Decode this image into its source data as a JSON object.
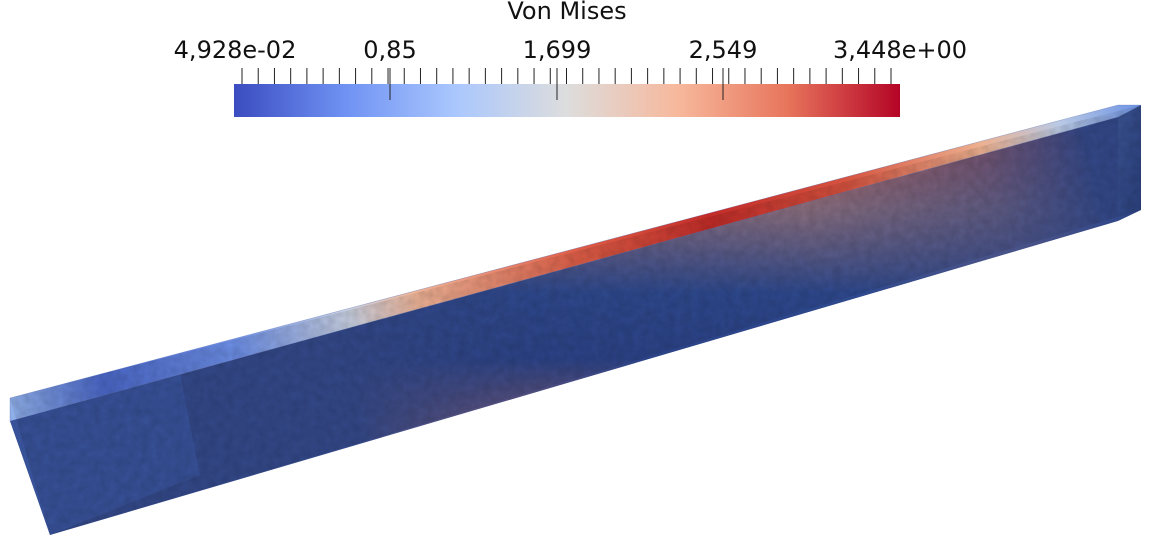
{
  "legend": {
    "title": "Von Mises",
    "labels": [
      "4,928e-02",
      "0,85",
      "1,699",
      "2,549",
      "3,448e+00"
    ],
    "colormap": [
      "#3b4cc0",
      "#6f92f3",
      "#aac7fd",
      "#dddddd",
      "#f7b89c",
      "#e7745b",
      "#b40426"
    ]
  },
  "scene": {
    "object": "beam",
    "colors": {
      "dark_blue": "#2e4583",
      "mid_blue": "#3b4d8f",
      "light_blue": "#7fa4e6",
      "gray": "#9a9aa6",
      "red": "#c23a2c",
      "dark_red": "#9e1c1c",
      "salmon": "#e59575"
    }
  }
}
